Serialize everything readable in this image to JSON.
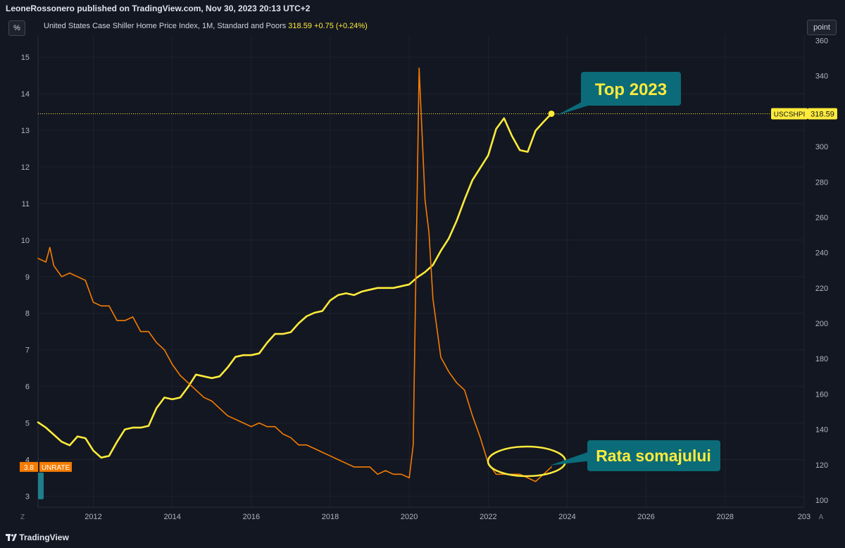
{
  "header": {
    "published_by": "LeoneRossonero published on TradingView.com, Nov 30, 2023 20:13 UTC+2"
  },
  "toolbar": {
    "left_unit": "%",
    "right_unit": "point",
    "bottom_left": "Z",
    "bottom_right": "A"
  },
  "legend": {
    "series_title": "United States Case Shiller Home Price Index, 1M, Standard and Poors",
    "last_value": "318.59",
    "change": "+0.75 (+0.24%)"
  },
  "footer": {
    "brand": "TradingView"
  },
  "colors": {
    "background": "#131722",
    "case_shiller": "#ffeb3b",
    "unemployment": "#f57c00",
    "callout": "#0b6b78"
  },
  "chart_data": {
    "type": "line",
    "x_axis": {
      "range": [
        2010.6,
        2030
      ],
      "ticks": [
        "2012",
        "2014",
        "2016",
        "2018",
        "2020",
        "2022",
        "2024",
        "2026",
        "2028",
        "203"
      ]
    },
    "y_left": {
      "range": [
        2.7,
        15.6
      ],
      "ticks": [
        "3",
        "4",
        "5",
        "6",
        "7",
        "8",
        "9",
        "10",
        "11",
        "12",
        "13",
        "14",
        "15"
      ]
    },
    "y_right": {
      "range": [
        96,
        363
      ],
      "ticks": [
        "100",
        "120",
        "140",
        "160",
        "180",
        "200",
        "220",
        "240",
        "260",
        "280",
        "300",
        "320",
        "340",
        "360"
      ]
    },
    "series": [
      {
        "name": "USCSHPI",
        "axis": "right",
        "color": "#ffeb3b",
        "last_label": "318.59",
        "points": [
          [
            2010.6,
            144
          ],
          [
            2010.8,
            141
          ],
          [
            2011.0,
            137
          ],
          [
            2011.2,
            133
          ],
          [
            2011.4,
            131
          ],
          [
            2011.6,
            136
          ],
          [
            2011.8,
            135
          ],
          [
            2012.0,
            128
          ],
          [
            2012.2,
            124
          ],
          [
            2012.4,
            125
          ],
          [
            2012.6,
            133
          ],
          [
            2012.8,
            140
          ],
          [
            2013.0,
            141
          ],
          [
            2013.2,
            141
          ],
          [
            2013.4,
            142
          ],
          [
            2013.6,
            152
          ],
          [
            2013.8,
            158
          ],
          [
            2014.0,
            157
          ],
          [
            2014.2,
            158
          ],
          [
            2014.4,
            164
          ],
          [
            2014.6,
            171
          ],
          [
            2014.8,
            170
          ],
          [
            2015.0,
            169
          ],
          [
            2015.2,
            170
          ],
          [
            2015.4,
            175
          ],
          [
            2015.6,
            181
          ],
          [
            2015.8,
            182
          ],
          [
            2016.0,
            182
          ],
          [
            2016.2,
            183
          ],
          [
            2016.4,
            189
          ],
          [
            2016.6,
            194
          ],
          [
            2016.8,
            194
          ],
          [
            2017.0,
            195
          ],
          [
            2017.2,
            200
          ],
          [
            2017.4,
            204
          ],
          [
            2017.6,
            206
          ],
          [
            2017.8,
            207
          ],
          [
            2018.0,
            213
          ],
          [
            2018.2,
            216
          ],
          [
            2018.4,
            217
          ],
          [
            2018.6,
            216
          ],
          [
            2018.8,
            218
          ],
          [
            2019.0,
            219
          ],
          [
            2019.2,
            220
          ],
          [
            2019.4,
            220
          ],
          [
            2019.6,
            220
          ],
          [
            2019.8,
            221
          ],
          [
            2020.0,
            222
          ],
          [
            2020.2,
            226
          ],
          [
            2020.4,
            229
          ],
          [
            2020.6,
            233
          ],
          [
            2020.8,
            241
          ],
          [
            2021.0,
            248
          ],
          [
            2021.2,
            258
          ],
          [
            2021.4,
            270
          ],
          [
            2021.6,
            281
          ],
          [
            2021.8,
            288
          ],
          [
            2022.0,
            295
          ],
          [
            2022.2,
            310
          ],
          [
            2022.4,
            316
          ],
          [
            2022.6,
            306
          ],
          [
            2022.8,
            298
          ],
          [
            2023.0,
            297
          ],
          [
            2023.2,
            309
          ],
          [
            2023.4,
            314
          ],
          [
            2023.6,
            318.59
          ]
        ]
      },
      {
        "name": "UNRATE",
        "axis": "left",
        "color": "#f57c00",
        "last_label": "3.8",
        "points": [
          [
            2010.6,
            9.5
          ],
          [
            2010.8,
            9.4
          ],
          [
            2010.9,
            9.8
          ],
          [
            2011.0,
            9.3
          ],
          [
            2011.2,
            9.0
          ],
          [
            2011.4,
            9.1
          ],
          [
            2011.6,
            9.0
          ],
          [
            2011.8,
            8.9
          ],
          [
            2012.0,
            8.3
          ],
          [
            2012.2,
            8.2
          ],
          [
            2012.4,
            8.2
          ],
          [
            2012.6,
            7.8
          ],
          [
            2012.8,
            7.8
          ],
          [
            2013.0,
            7.9
          ],
          [
            2013.2,
            7.5
          ],
          [
            2013.4,
            7.5
          ],
          [
            2013.6,
            7.2
          ],
          [
            2013.8,
            7.0
          ],
          [
            2014.0,
            6.6
          ],
          [
            2014.2,
            6.3
          ],
          [
            2014.4,
            6.1
          ],
          [
            2014.6,
            5.9
          ],
          [
            2014.8,
            5.7
          ],
          [
            2015.0,
            5.6
          ],
          [
            2015.2,
            5.4
          ],
          [
            2015.4,
            5.2
          ],
          [
            2015.6,
            5.1
          ],
          [
            2015.8,
            5.0
          ],
          [
            2016.0,
            4.9
          ],
          [
            2016.2,
            5.0
          ],
          [
            2016.4,
            4.9
          ],
          [
            2016.6,
            4.9
          ],
          [
            2016.8,
            4.7
          ],
          [
            2017.0,
            4.6
          ],
          [
            2017.2,
            4.4
          ],
          [
            2017.4,
            4.4
          ],
          [
            2017.6,
            4.3
          ],
          [
            2017.8,
            4.2
          ],
          [
            2018.0,
            4.1
          ],
          [
            2018.2,
            4.0
          ],
          [
            2018.4,
            3.9
          ],
          [
            2018.6,
            3.8
          ],
          [
            2018.8,
            3.8
          ],
          [
            2019.0,
            3.8
          ],
          [
            2019.2,
            3.6
          ],
          [
            2019.4,
            3.7
          ],
          [
            2019.6,
            3.6
          ],
          [
            2019.8,
            3.6
          ],
          [
            2020.0,
            3.5
          ],
          [
            2020.1,
            4.4
          ],
          [
            2020.25,
            14.7
          ],
          [
            2020.4,
            11.1
          ],
          [
            2020.5,
            10.2
          ],
          [
            2020.6,
            8.4
          ],
          [
            2020.8,
            6.8
          ],
          [
            2021.0,
            6.4
          ],
          [
            2021.2,
            6.1
          ],
          [
            2021.4,
            5.9
          ],
          [
            2021.6,
            5.2
          ],
          [
            2021.8,
            4.6
          ],
          [
            2022.0,
            3.9
          ],
          [
            2022.2,
            3.6
          ],
          [
            2022.4,
            3.6
          ],
          [
            2022.6,
            3.6
          ],
          [
            2022.8,
            3.6
          ],
          [
            2023.0,
            3.5
          ],
          [
            2023.2,
            3.4
          ],
          [
            2023.4,
            3.6
          ],
          [
            2023.6,
            3.8
          ]
        ]
      }
    ],
    "annotations": [
      {
        "text": "Top 2023"
      },
      {
        "text": "Rata somajului"
      }
    ]
  }
}
